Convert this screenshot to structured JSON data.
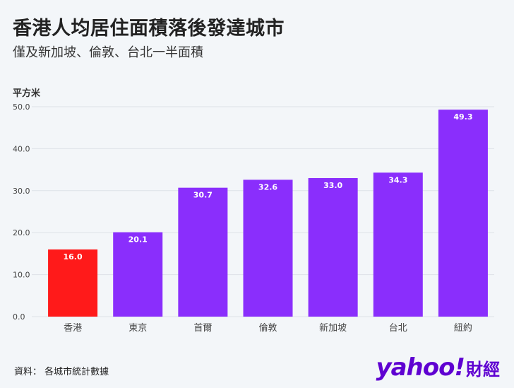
{
  "header": {
    "title": "香港人均居住面積落後發達城市",
    "subtitle": "僅及新加坡、倫敦、台北一半面積"
  },
  "footer": {
    "source": "資料：  各城市統計數據",
    "logo_brand": "yahoo!",
    "logo_suffix": "財經"
  },
  "colors": {
    "highlight": "#ff1a1a",
    "bar": "#8a2efc",
    "grid": "#dde2e8",
    "axis_text": "#444444",
    "logo": "#5f01d1"
  },
  "chart_data": {
    "type": "bar",
    "title": "香港人均居住面積落後發達城市",
    "subtitle": "僅及新加坡、倫敦、台北一半面積",
    "ylabel": "平方米",
    "xlabel": "",
    "categories": [
      "香港",
      "東京",
      "首爾",
      "倫敦",
      "新加坡",
      "台北",
      "紐約"
    ],
    "values": [
      16.0,
      20.1,
      30.7,
      32.6,
      33.0,
      34.3,
      49.3
    ],
    "value_labels": [
      "16.0",
      "20.1",
      "30.7",
      "32.6",
      "33.0",
      "34.3",
      "49.3"
    ],
    "highlight_category": "香港",
    "ylim": [
      0,
      50
    ],
    "yticks": [
      "0.0",
      "10.0",
      "20.0",
      "30.0",
      "40.0",
      "50.0"
    ],
    "ytick_values": [
      0,
      10,
      20,
      30,
      40,
      50
    ],
    "grid": true,
    "legend": "none"
  }
}
